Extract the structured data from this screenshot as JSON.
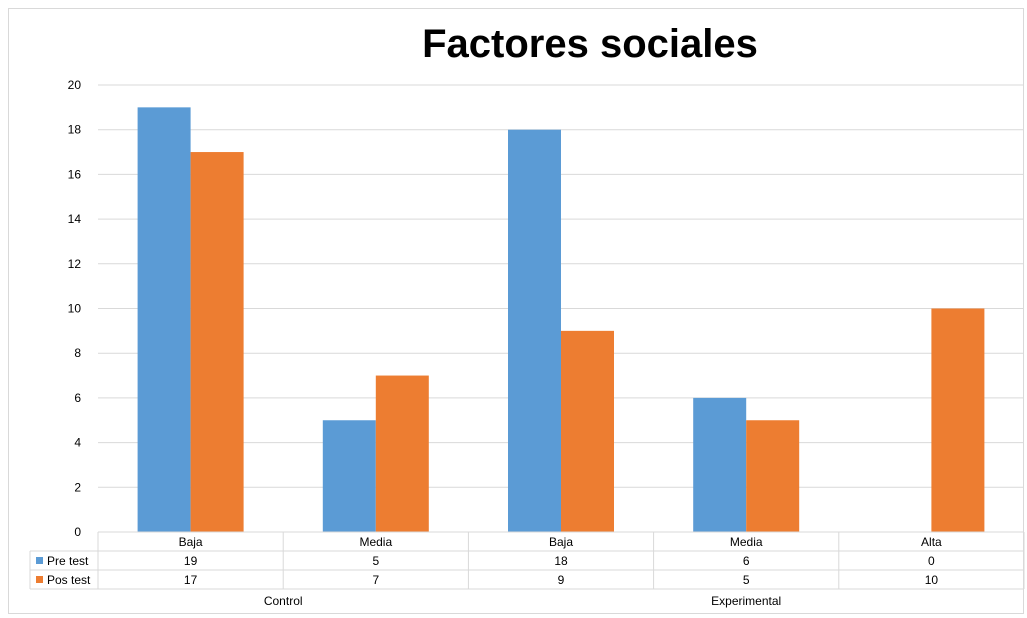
{
  "chart_data": {
    "type": "bar",
    "title": "Factores sociales",
    "categories": [
      "Baja",
      "Media",
      "Baja",
      "Media",
      "Alta"
    ],
    "groups": [
      {
        "label": "Control",
        "span": [
          0,
          1
        ]
      },
      {
        "label": "Experimental",
        "span": [
          2,
          4
        ]
      }
    ],
    "series": [
      {
        "name": "Pre test",
        "values": [
          19,
          5,
          18,
          6,
          0
        ],
        "color": "#5b9bd5"
      },
      {
        "name": "Pos test",
        "values": [
          17,
          7,
          9,
          5,
          10
        ],
        "color": "#ed7d31"
      }
    ],
    "ylim": [
      0,
      20
    ],
    "yticks": [
      0,
      2,
      4,
      6,
      8,
      10,
      12,
      14,
      16,
      18,
      20
    ],
    "grid": true,
    "legend": "data-table"
  }
}
